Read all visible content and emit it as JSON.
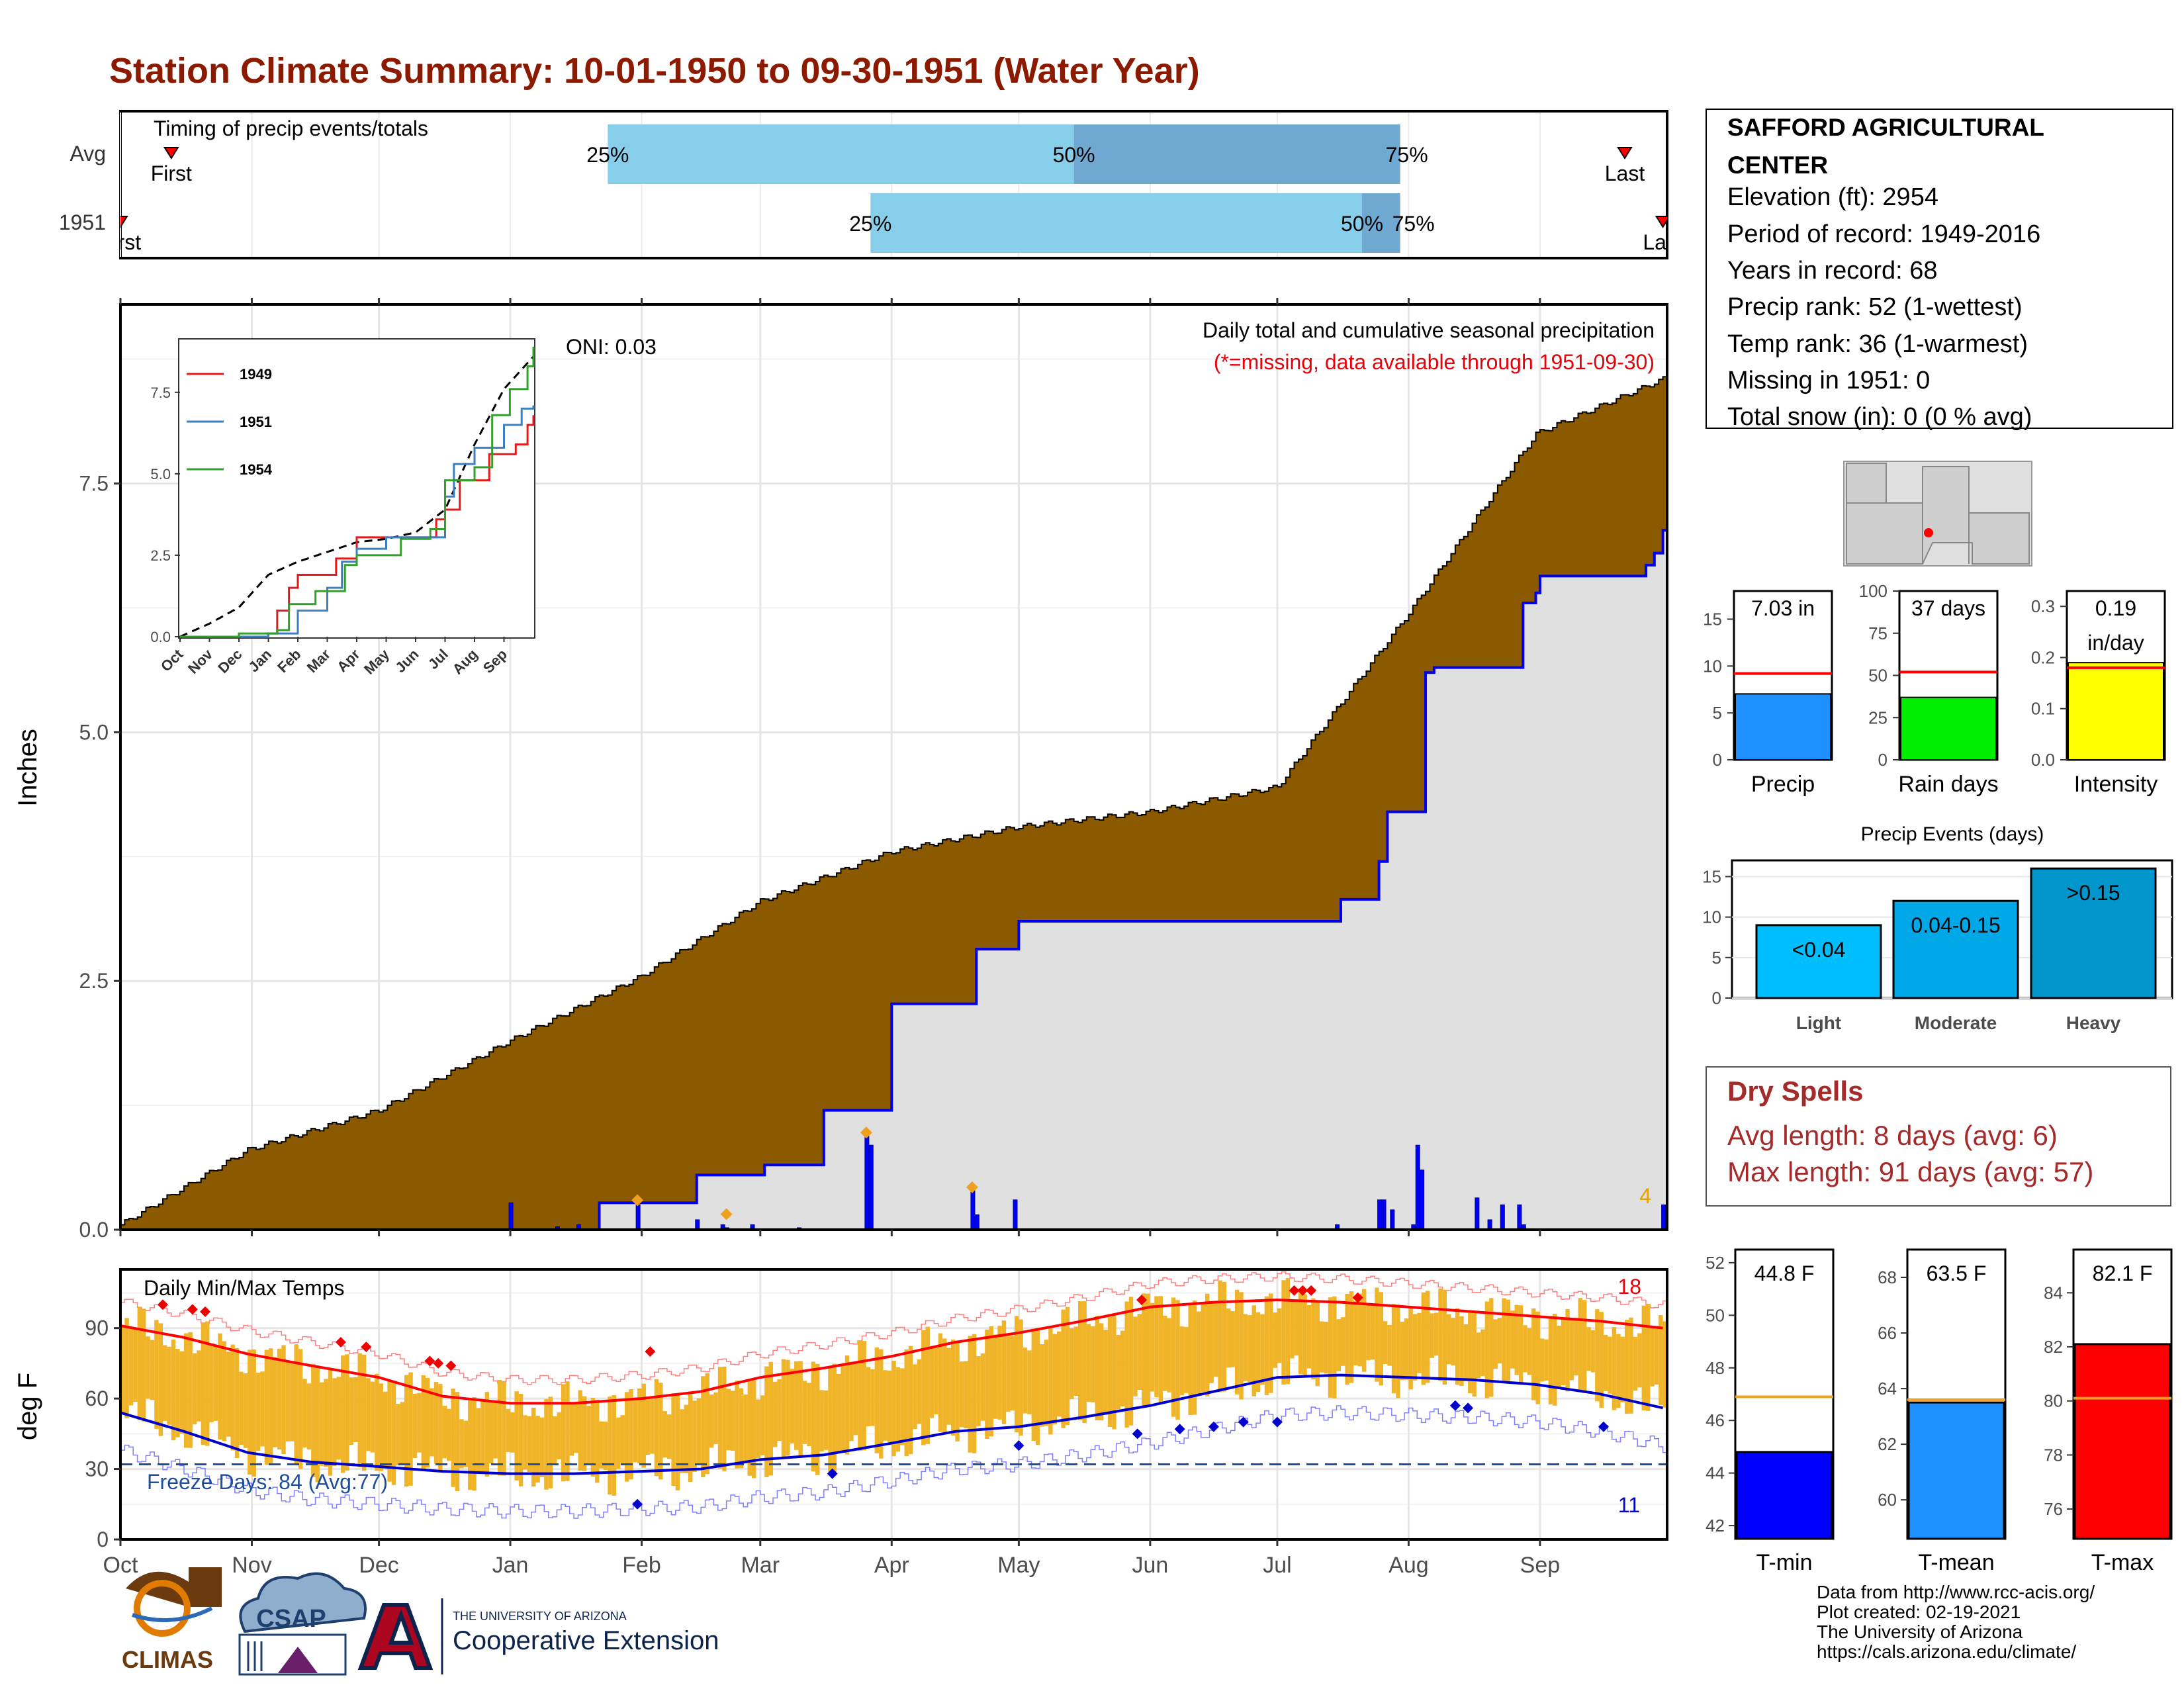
{
  "title": "Station Climate Summary: 10-01-1950 to 09-30-1951 (Water Year)",
  "months": [
    "Oct",
    "Nov",
    "Dec",
    "Jan",
    "Feb",
    "Mar",
    "Apr",
    "May",
    "Jun",
    "Jul",
    "Aug",
    "Sep"
  ],
  "timing": {
    "label": "Timing of precip events/totals",
    "rows": [
      "Avg",
      "1951"
    ],
    "avg": {
      "first_day": 12,
      "last_day": 355,
      "p25_day": 115,
      "p50_day": 225,
      "p75_day": 302
    },
    "year": {
      "first_day": 0,
      "last_day": 364,
      "p25_day": 177,
      "p50_day": 293,
      "p75_day": 302
    },
    "first_label": "First",
    "last_label": "Last",
    "p25_label": "25%",
    "p50_label": "50%",
    "p75_label": "75%"
  },
  "main": {
    "ylabel": "Inches",
    "annotation": "Daily total and cumulative seasonal precipitation",
    "missing_note": "(*=missing, data available through 1951-09-30)",
    "oni_label": "ONI: 0.03",
    "count_label": "4",
    "count_color": "#e69f00",
    "fill_avg_color": "#8b5a00",
    "fill_year_color": "#e0e0e0",
    "line_color": "#0000ee"
  },
  "inset": {
    "series": [
      {
        "name": "1949",
        "color": "#e31a1c"
      },
      {
        "name": "1951",
        "color": "#3f7fbf"
      },
      {
        "name": "1954",
        "color": "#33a02c"
      }
    ],
    "y_ticks": [
      "0.0",
      "2.5",
      "5.0",
      "7.5"
    ],
    "x_ticks": [
      "Oct",
      "Nov",
      "Dec",
      "Jan",
      "Feb",
      "Mar",
      "Apr",
      "May",
      "Jun",
      "Jul",
      "Aug",
      "Sep"
    ]
  },
  "temps": {
    "label": "Daily Min/Max Temps",
    "ylabel": "deg F",
    "freeze_label": "Freeze Days: 84 (Avg:77)",
    "hot_count": "18",
    "cold_count": "11",
    "y_ticks": [
      "0",
      "30",
      "60",
      "90"
    ]
  },
  "station": {
    "lines": [
      "SAFFORD AGRICULTURAL",
      "CENTER",
      "Elevation (ft): 2954",
      "Period of record: 1949-2016",
      "Years in record: 68",
      "Precip rank: 52 (1-wettest)",
      "Temp rank: 36 (1-warmest)",
      "Missing in 1951: 0",
      "Total snow (in): 0 (0 % avg)"
    ]
  },
  "summary_bars": [
    {
      "label": "Precip",
      "value_label": "7.03 in",
      "value": 7.03,
      "avg": 9.2,
      "ymax": 18,
      "ticks": [
        "0",
        "5",
        "10",
        "15"
      ],
      "tick_vals": [
        0,
        5,
        10,
        15
      ],
      "color": "#1e90ff"
    },
    {
      "label": "Rain days",
      "value_label": "37 days",
      "value": 37,
      "avg": 52,
      "ymax": 100,
      "ticks": [
        "0",
        "25",
        "50",
        "75",
        "100"
      ],
      "tick_vals": [
        0,
        25,
        50,
        75,
        100
      ],
      "color": "#00ee00"
    },
    {
      "label": "Intensity",
      "value_label": "0.19\nin/day",
      "value": 0.19,
      "avg": 0.18,
      "ymax": 0.33,
      "ticks": [
        "0.0",
        "0.1",
        "0.2",
        "0.3"
      ],
      "tick_vals": [
        0,
        0.1,
        0.2,
        0.3
      ],
      "color": "#ffff00"
    }
  ],
  "events": {
    "title": "Precip Events (days)",
    "categories": [
      "Light",
      "Moderate",
      "Heavy"
    ],
    "bar_labels": [
      "<0.04",
      "0.04-0.15",
      ">0.15"
    ],
    "values": [
      9,
      12,
      16
    ],
    "colors": [
      "#00bfff",
      "#00a8e8",
      "#0096cc"
    ],
    "ticks": [
      "0",
      "5",
      "10",
      "15"
    ]
  },
  "dry": {
    "title": "Dry Spells",
    "avg": "Avg length: 8 days (avg: 6)",
    "max": "Max length: 91 days (avg: 57)"
  },
  "temp_bars": [
    {
      "label": "T-min",
      "value_label": "44.8 F",
      "value": 44.8,
      "avg": 46.9,
      "ymin": 41.5,
      "ymax": 52.5,
      "ticks": [
        "42",
        "44",
        "46",
        "48",
        "50",
        "52"
      ],
      "tick_vals": [
        42,
        44,
        46,
        48,
        50,
        52
      ],
      "color": "#0000ff"
    },
    {
      "label": "T-mean",
      "value_label": "63.5 F",
      "value": 63.5,
      "avg": 63.6,
      "ymin": 58.6,
      "ymax": 69.0,
      "ticks": [
        "60",
        "62",
        "64",
        "66",
        "68"
      ],
      "tick_vals": [
        60,
        62,
        64,
        66,
        68
      ],
      "color": "#1e90ff"
    },
    {
      "label": "T-max",
      "value_label": "82.1 F",
      "value": 82.1,
      "avg": 80.1,
      "ymin": 74.9,
      "ymax": 85.6,
      "ticks": [
        "76",
        "78",
        "80",
        "82",
        "84"
      ],
      "tick_vals": [
        76,
        78,
        80,
        82,
        84
      ],
      "color": "#ff0000"
    }
  ],
  "footer": {
    "lines": [
      "Data from http://www.rcc-acis.org/",
      "Plot created: 02-19-2021",
      "The University of Arizona",
      "https://cals.arizona.edu/climate/"
    ],
    "logo_climas": "CLIMAS",
    "logo_csap": "CSAP",
    "ua_small": "THE UNIVERSITY OF ARIZONA",
    "ua_large": "Cooperative Extension"
  },
  "chart_data": [
    {
      "type": "area",
      "title": "Daily total and cumulative seasonal precipitation",
      "ylabel": "Inches",
      "ylim": [
        0,
        9.3
      ],
      "x_labels": [
        "Oct",
        "Nov",
        "Dec",
        "Jan",
        "Feb",
        "Mar",
        "Apr",
        "May",
        "Jun",
        "Jul",
        "Aug",
        "Sep"
      ],
      "series": [
        {
          "name": "Average cumulative",
          "x_day": [
            0,
            30,
            61,
            92,
            123,
            151,
            182,
            212,
            243,
            273,
            304,
            334,
            364
          ],
          "values": [
            0.05,
            0.8,
            1.2,
            1.9,
            2.55,
            3.3,
            3.8,
            4.05,
            4.2,
            4.45,
            6.2,
            8.0,
            8.55
          ]
        },
        {
          "name": "1951 cumulative",
          "x_day": [
            0,
            92,
            113,
            114,
            136,
            152,
            166,
            181,
            182,
            201,
            202,
            211,
            212,
            287,
            288,
            297,
            299,
            308,
            310,
            330,
            331,
            334,
            335,
            360,
            362,
            364
          ],
          "values": [
            0,
            0,
            0.27,
            0.27,
            0.55,
            0.65,
            1.2,
            1.2,
            2.27,
            2.27,
            2.82,
            2.82,
            3.1,
            3.1,
            3.32,
            3.7,
            4.2,
            5.6,
            5.65,
            5.65,
            6.3,
            6.4,
            6.57,
            6.68,
            6.8,
            7.03
          ]
        }
      ],
      "daily_precip": [
        {
          "day": 92,
          "value": 0.27
        },
        {
          "day": 103,
          "value": 0.03
        },
        {
          "day": 108,
          "value": 0.05
        },
        {
          "day": 122,
          "value": 0.25
        },
        {
          "day": 136,
          "value": 0.1
        },
        {
          "day": 142,
          "value": 0.05
        },
        {
          "day": 143,
          "value": 0.02
        },
        {
          "day": 149,
          "value": 0.05
        },
        {
          "day": 160,
          "value": 0.02
        },
        {
          "day": 176,
          "value": 0.95
        },
        {
          "day": 177,
          "value": 0.85
        },
        {
          "day": 201,
          "value": 0.4
        },
        {
          "day": 202,
          "value": 0.15
        },
        {
          "day": 211,
          "value": 0.3
        },
        {
          "day": 287,
          "value": 0.05
        },
        {
          "day": 297,
          "value": 0.3
        },
        {
          "day": 298,
          "value": 0.3
        },
        {
          "day": 300,
          "value": 0.2
        },
        {
          "day": 305,
          "value": 0.05
        },
        {
          "day": 306,
          "value": 0.85
        },
        {
          "day": 307,
          "value": 0.6
        },
        {
          "day": 320,
          "value": 0.32
        },
        {
          "day": 323,
          "value": 0.1
        },
        {
          "day": 326,
          "value": 0.25
        },
        {
          "day": 330,
          "value": 0.25
        },
        {
          "day": 331,
          "value": 0.05
        },
        {
          "day": 364,
          "value": 0.25
        }
      ],
      "oni": 0.03
    },
    {
      "type": "line",
      "title": "Daily Min/Max Temps",
      "ylabel": "deg F",
      "ylim": [
        0,
        115
      ],
      "x_labels": [
        "Oct",
        "Nov",
        "Dec",
        "Jan",
        "Feb",
        "Mar",
        "Apr",
        "May",
        "Jun",
        "Jul",
        "Aug",
        "Sep"
      ],
      "series": [
        {
          "name": "Avg max",
          "x_day": [
            0,
            15,
            30,
            45,
            61,
            76,
            92,
            107,
            123,
            137,
            151,
            166,
            182,
            197,
            212,
            227,
            243,
            258,
            273,
            288,
            304,
            319,
            334,
            349,
            364
          ],
          "values": [
            91,
            86,
            79,
            74,
            69,
            61,
            58,
            58,
            60,
            63,
            69,
            73,
            78,
            84,
            88,
            93,
            99,
            101,
            102,
            101,
            99,
            97,
            95,
            93,
            90
          ]
        },
        {
          "name": "Avg min",
          "x_day": [
            0,
            15,
            30,
            45,
            61,
            76,
            92,
            107,
            123,
            137,
            151,
            166,
            182,
            197,
            212,
            227,
            243,
            258,
            273,
            288,
            304,
            319,
            334,
            349,
            364
          ],
          "values": [
            54,
            46,
            37,
            33,
            31,
            29,
            28,
            28,
            29,
            30,
            34,
            36,
            41,
            46,
            48,
            52,
            57,
            63,
            69,
            70,
            69,
            68,
            66,
            62,
            56
          ]
        },
        {
          "name": "Freeze threshold",
          "x_day": [
            0,
            364
          ],
          "values": [
            32,
            32
          ]
        }
      ],
      "freeze_days": 84,
      "freeze_days_avg": 77
    },
    {
      "type": "bar",
      "title": "Precip Events (days)",
      "categories": [
        "Light",
        "Moderate",
        "Heavy"
      ],
      "values": [
        9,
        12,
        16
      ]
    }
  ]
}
